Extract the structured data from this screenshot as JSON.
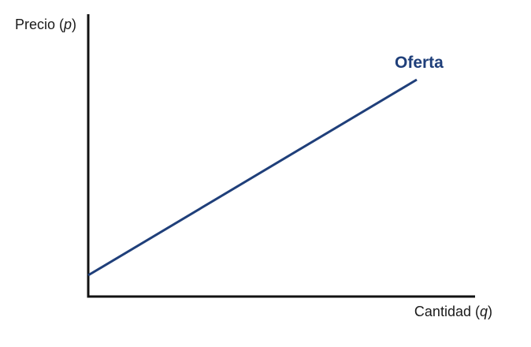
{
  "diagram": {
    "y_axis": {
      "label": "Precio (",
      "variable": "p",
      "label_end": ")"
    },
    "x_axis": {
      "label": "Cantidad (",
      "variable": "q",
      "label_end": ")"
    },
    "curve": {
      "label": "Oferta",
      "color": "#1f3f7a"
    },
    "axis_color": "#111111"
  }
}
